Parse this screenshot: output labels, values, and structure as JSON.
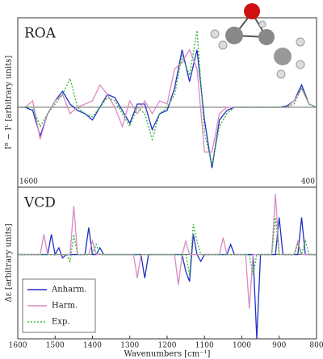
{
  "chart_data": [
    {
      "type": "line",
      "title": "ROA",
      "y_label": "Iᴿ − Iᴸ  [arbitrary units]",
      "annotations": [
        "1600",
        "400"
      ],
      "x": [
        1600,
        1580,
        1560,
        1540,
        1520,
        1500,
        1480,
        1460,
        1440,
        1420,
        1400,
        1380,
        1360,
        1340,
        1320,
        1300,
        1280,
        1260,
        1240,
        1220,
        1200,
        1180,
        1160,
        1140,
        1120,
        1100,
        1080,
        1060,
        1040,
        1020,
        1000,
        980,
        960,
        940,
        920,
        900,
        880,
        860,
        840,
        820,
        800
      ],
      "xlim": [
        1600,
        800
      ],
      "ylim": [
        -1.25,
        1.4
      ],
      "series": [
        {
          "color": "#1f2fc8",
          "style": "solid",
          "values": [
            0,
            0,
            -0.05,
            -0.45,
            -0.1,
            0.1,
            0.25,
            0.05,
            -0.05,
            -0.1,
            -0.2,
            0,
            0.2,
            0.15,
            -0.05,
            -0.25,
            0.05,
            0.05,
            -0.35,
            -0.1,
            -0.05,
            0.3,
            0.9,
            0.4,
            0.9,
            -0.2,
            -0.95,
            -0.2,
            -0.05,
            0,
            0,
            0,
            0,
            0,
            0,
            0,
            0.02,
            0.1,
            0.35,
            0.05,
            0
          ]
        },
        {
          "color": "#d98ac4",
          "style": "solid",
          "values": [
            0,
            0,
            0.1,
            -0.5,
            -0.1,
            0.1,
            0.2,
            -0.1,
            0,
            0.05,
            0.1,
            0.35,
            0.2,
            0,
            -0.3,
            0.1,
            -0.1,
            0.1,
            -0.1,
            0.1,
            0.05,
            0.6,
            0.7,
            0.9,
            0.6,
            -0.7,
            -0.7,
            -0.1,
            0,
            0,
            0,
            0,
            0,
            0,
            0,
            0,
            0,
            0.1,
            0.3,
            0.05,
            0
          ]
        },
        {
          "color": "#3cb83c",
          "style": "dotted",
          "values": [
            0,
            0,
            0,
            -0.3,
            -0.1,
            0.05,
            0.2,
            0.45,
            0,
            -0.1,
            -0.15,
            0,
            0.15,
            0.1,
            -0.1,
            -0.3,
            0,
            -0.1,
            -0.5,
            -0.1,
            0,
            0.2,
            0.8,
            0.5,
            1.2,
            -0.4,
            -0.9,
            -0.3,
            -0.1,
            0,
            0,
            0,
            0,
            0,
            0,
            0,
            0,
            0.05,
            0.3,
            0.05,
            0
          ]
        }
      ]
    },
    {
      "type": "line",
      "title": "VCD",
      "y_label": "Δε  [arbitrary units]",
      "x_label": "Wavenumbers  [cm⁻¹]",
      "legend": "lower left",
      "x": [
        1600,
        1590,
        1580,
        1570,
        1560,
        1550,
        1540,
        1530,
        1520,
        1510,
        1500,
        1490,
        1480,
        1470,
        1460,
        1450,
        1440,
        1430,
        1420,
        1410,
        1400,
        1390,
        1380,
        1370,
        1360,
        1350,
        1340,
        1330,
        1320,
        1310,
        1300,
        1290,
        1280,
        1270,
        1260,
        1250,
        1240,
        1230,
        1220,
        1210,
        1200,
        1190,
        1180,
        1170,
        1160,
        1150,
        1140,
        1130,
        1120,
        1110,
        1100,
        1090,
        1080,
        1070,
        1060,
        1050,
        1040,
        1030,
        1020,
        1010,
        1000,
        990,
        980,
        970,
        960,
        950,
        940,
        930,
        920,
        910,
        900,
        890,
        880,
        870,
        860,
        850,
        840,
        830,
        820,
        810,
        800
      ],
      "xlim": [
        1600,
        800
      ],
      "ylim": [
        -1.25,
        1
      ],
      "xticks": [
        1600,
        1500,
        1400,
        1300,
        1200,
        1100,
        1000,
        900,
        800
      ],
      "series": [
        {
          "name": "Anharm.",
          "color": "#1f2fc8",
          "style": "solid",
          "values": [
            0,
            0,
            0,
            0,
            0,
            0,
            0,
            0,
            0,
            0.3,
            0,
            0.1,
            -0.05,
            0,
            0,
            0,
            0,
            0,
            0,
            0.4,
            0,
            0,
            0.1,
            0,
            0,
            0,
            0,
            0,
            0,
            0,
            0,
            0,
            0,
            0,
            -0.35,
            0,
            0,
            0,
            0,
            0,
            0,
            0,
            0,
            0,
            0,
            -0.25,
            -0.4,
            0.3,
            0,
            -0.1,
            0,
            0,
            0,
            0,
            0,
            0,
            0,
            0.15,
            0,
            0,
            0,
            0,
            0,
            0,
            -1.25,
            0,
            0,
            0,
            0,
            0,
            0.55,
            0,
            0,
            0,
            0,
            0,
            0.55,
            0,
            0,
            0,
            0
          ]
        },
        {
          "name": "Harm.",
          "color": "#d98ac4",
          "style": "solid",
          "values": [
            0,
            0,
            0,
            0,
            0,
            0,
            0,
            0.3,
            0,
            0,
            0,
            0,
            0,
            0,
            0,
            0.72,
            0,
            0,
            0,
            0,
            0.2,
            0,
            0,
            0,
            0,
            0,
            0,
            0,
            0,
            0,
            0,
            0,
            -0.35,
            0,
            0,
            0,
            0,
            0,
            0,
            0,
            0,
            0,
            0,
            -0.45,
            0,
            0.2,
            0,
            0,
            0,
            0,
            0,
            0,
            0,
            0,
            0,
            0.25,
            0,
            0,
            0,
            0,
            0,
            0,
            -0.8,
            0,
            0,
            0,
            0,
            0,
            0,
            0.9,
            0,
            0,
            0,
            0,
            0,
            0.2,
            0,
            0,
            0,
            0,
            0
          ]
        },
        {
          "name": "Exp.",
          "color": "#3cb83c",
          "style": "dotted",
          "values": [
            0,
            0,
            0,
            0,
            0,
            0,
            0,
            0,
            0,
            0,
            0,
            0,
            0,
            0,
            -0.1,
            0.3,
            0,
            0,
            0,
            0,
            0,
            0.15,
            0,
            0,
            0,
            0,
            0,
            0,
            0,
            0,
            0,
            0,
            0,
            0,
            0,
            0,
            0,
            0,
            0,
            0,
            0,
            0,
            0,
            0,
            0,
            0,
            -0.3,
            0.45,
            0.2,
            0,
            0,
            0,
            0,
            0,
            0,
            0,
            0,
            0,
            0,
            0,
            0,
            0,
            0,
            -0.3,
            0,
            0,
            0,
            0,
            0,
            0.55,
            0,
            0,
            0,
            0,
            0,
            0.15,
            0,
            0.2,
            0,
            0,
            0
          ]
        }
      ]
    }
  ]
}
